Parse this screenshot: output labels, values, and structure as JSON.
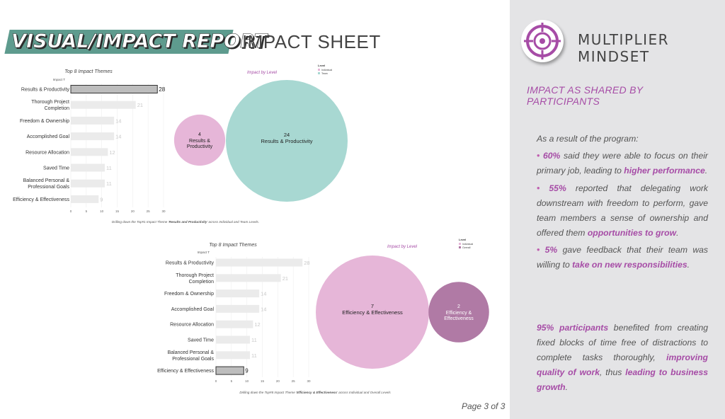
{
  "header": {
    "title": "VISUAL/IMPACT REPORT",
    "subtitle": "IMPACT SHEET"
  },
  "brand": {
    "name": "MULTIPLIER MINDSET",
    "logo_icon": "target-icon",
    "logo_color": "#a64ca6"
  },
  "panel": {
    "heading": "IMPACT AS SHARED BY PARTICIPANTS",
    "intro": "As a result of the program:",
    "bullets": [
      {
        "pct": "60%",
        "pre": " said they were able to focus on their primary job, leading to ",
        "hl": "higher performance",
        "post": "."
      },
      {
        "pct": "55%",
        "pre": " reported that delegating work downstream with freedom to perform, gave team members a sense of ownership and offered them ",
        "hl": "opportunities to grow",
        "post": "."
      },
      {
        "pct": "5%",
        "pre": " gave feedback that their team was willing to ",
        "hl": "take on new responsibilities",
        "post": "."
      }
    ],
    "summary": {
      "pct": "95% participants",
      "pre": " benefited from creating fixed blocks of time free of distractions to complete tasks thoroughly, ",
      "hl1": "improving quality of work",
      "mid": ", thus ",
      "hl2": "leading to business growth",
      "post": "."
    }
  },
  "page_number": "Page 3 of 3",
  "chart_data": [
    {
      "type": "bar",
      "orientation": "horizontal",
      "title": "Top 8 Impact Themes",
      "ylabel": "Impact T",
      "categories": [
        "Results & Productivity",
        "Thorough Project Completion",
        "Freedom & Ownership",
        "Accomplished Goal",
        "Resource Allocation",
        "Saved Time",
        "Balanced Personal & Professional Goals",
        "Efficiency & Effectiveness"
      ],
      "category_lines": [
        [
          "Results & Productivity"
        ],
        [
          "Thorough Project",
          "Completion"
        ],
        [
          "Freedom & Ownership"
        ],
        [
          "Accomplished Goal"
        ],
        [
          "Resource Allocation"
        ],
        [
          "Saved Time"
        ],
        [
          "Balanced Personal &",
          "Professional Goals"
        ],
        [
          "Efficiency & Effectiveness"
        ]
      ],
      "values": [
        28,
        21,
        14,
        14,
        12,
        11,
        11,
        9
      ],
      "highlight_index": 0,
      "xlim": [
        0,
        30
      ],
      "xticks": [
        0,
        5,
        10,
        15,
        20,
        25,
        30
      ],
      "caption_pre": "Drilling down the Top#1 Impact Theme '",
      "caption_hl": "Results and Productivity",
      "caption_post": "' across Individual and Team Levels."
    },
    {
      "type": "bubble",
      "title": "Impact by Level",
      "legend_title": "Level",
      "legend_placement": "top-right",
      "series": [
        {
          "name": "Individual",
          "value": 4,
          "label": "Results & Productivity",
          "color": "#e6b6d8"
        },
        {
          "name": "Team",
          "value": 24,
          "label": "Results & Productivity",
          "color": "#a8d8d2"
        }
      ]
    },
    {
      "type": "bar",
      "orientation": "horizontal",
      "title": "Top 8 Impact Themes",
      "ylabel": "Impact T",
      "categories": [
        "Results & Productivity",
        "Thorough Project Completion",
        "Freedom & Ownership",
        "Accomplished Goal",
        "Resource Allocation",
        "Saved Time",
        "Balanced Personal & Professional Goals",
        "Efficiency & Effectiveness"
      ],
      "category_lines": [
        [
          "Results & Productivity"
        ],
        [
          "Thorough Project",
          "Completion"
        ],
        [
          "Freedom & Ownership"
        ],
        [
          "Accomplished Goal"
        ],
        [
          "Resource Allocation"
        ],
        [
          "Saved Time"
        ],
        [
          "Balanced Personal &",
          "Professional Goals"
        ],
        [
          "Efficiency & Effectiveness"
        ]
      ],
      "values": [
        28,
        21,
        14,
        14,
        12,
        11,
        11,
        9
      ],
      "highlight_index": 7,
      "xlim": [
        0,
        30
      ],
      "xticks": [
        0,
        5,
        10,
        15,
        20,
        25,
        30
      ],
      "caption_pre": "Drilling down the Top#8 Impact Theme '",
      "caption_hl": "Efficiency & Effectiveness",
      "caption_post": "' across Individual and Overall Levels"
    },
    {
      "type": "bubble",
      "title": "Impact by Level",
      "legend_title": "Level",
      "legend_placement": "top-right",
      "series": [
        {
          "name": "Individual",
          "value": 7,
          "label": "Efficiency & Effectiveness",
          "color": "#e6b6d8"
        },
        {
          "name": "Overall",
          "value": 2,
          "label": "Efficiency & Effectiveness",
          "color": "#b07aa5"
        }
      ]
    }
  ]
}
